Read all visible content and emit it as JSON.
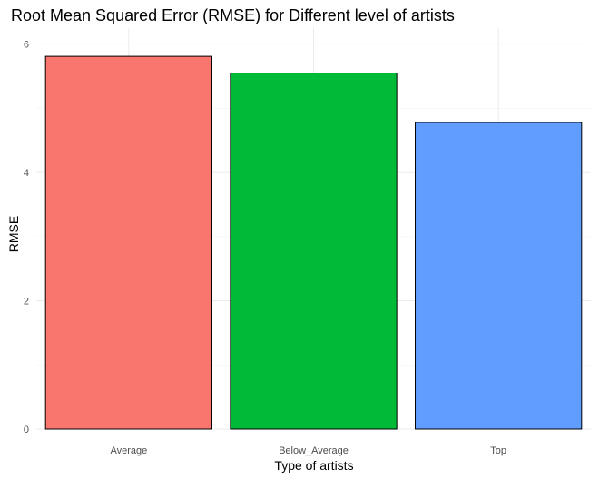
{
  "chart_data": {
    "type": "bar",
    "title": "Root Mean Squared Error (RMSE) for Different level of artists",
    "xlabel": "Type of artists",
    "ylabel": "RMSE",
    "categories": [
      "Average",
      "Below_Average",
      "Top"
    ],
    "values": [
      5.81,
      5.55,
      4.78
    ],
    "colors": [
      "#F8766D",
      "#00BA38",
      "#619CFF"
    ],
    "ylim": [
      0,
      6
    ],
    "yticks": [
      0,
      2,
      4,
      6
    ],
    "grid": true,
    "legend": "none"
  }
}
